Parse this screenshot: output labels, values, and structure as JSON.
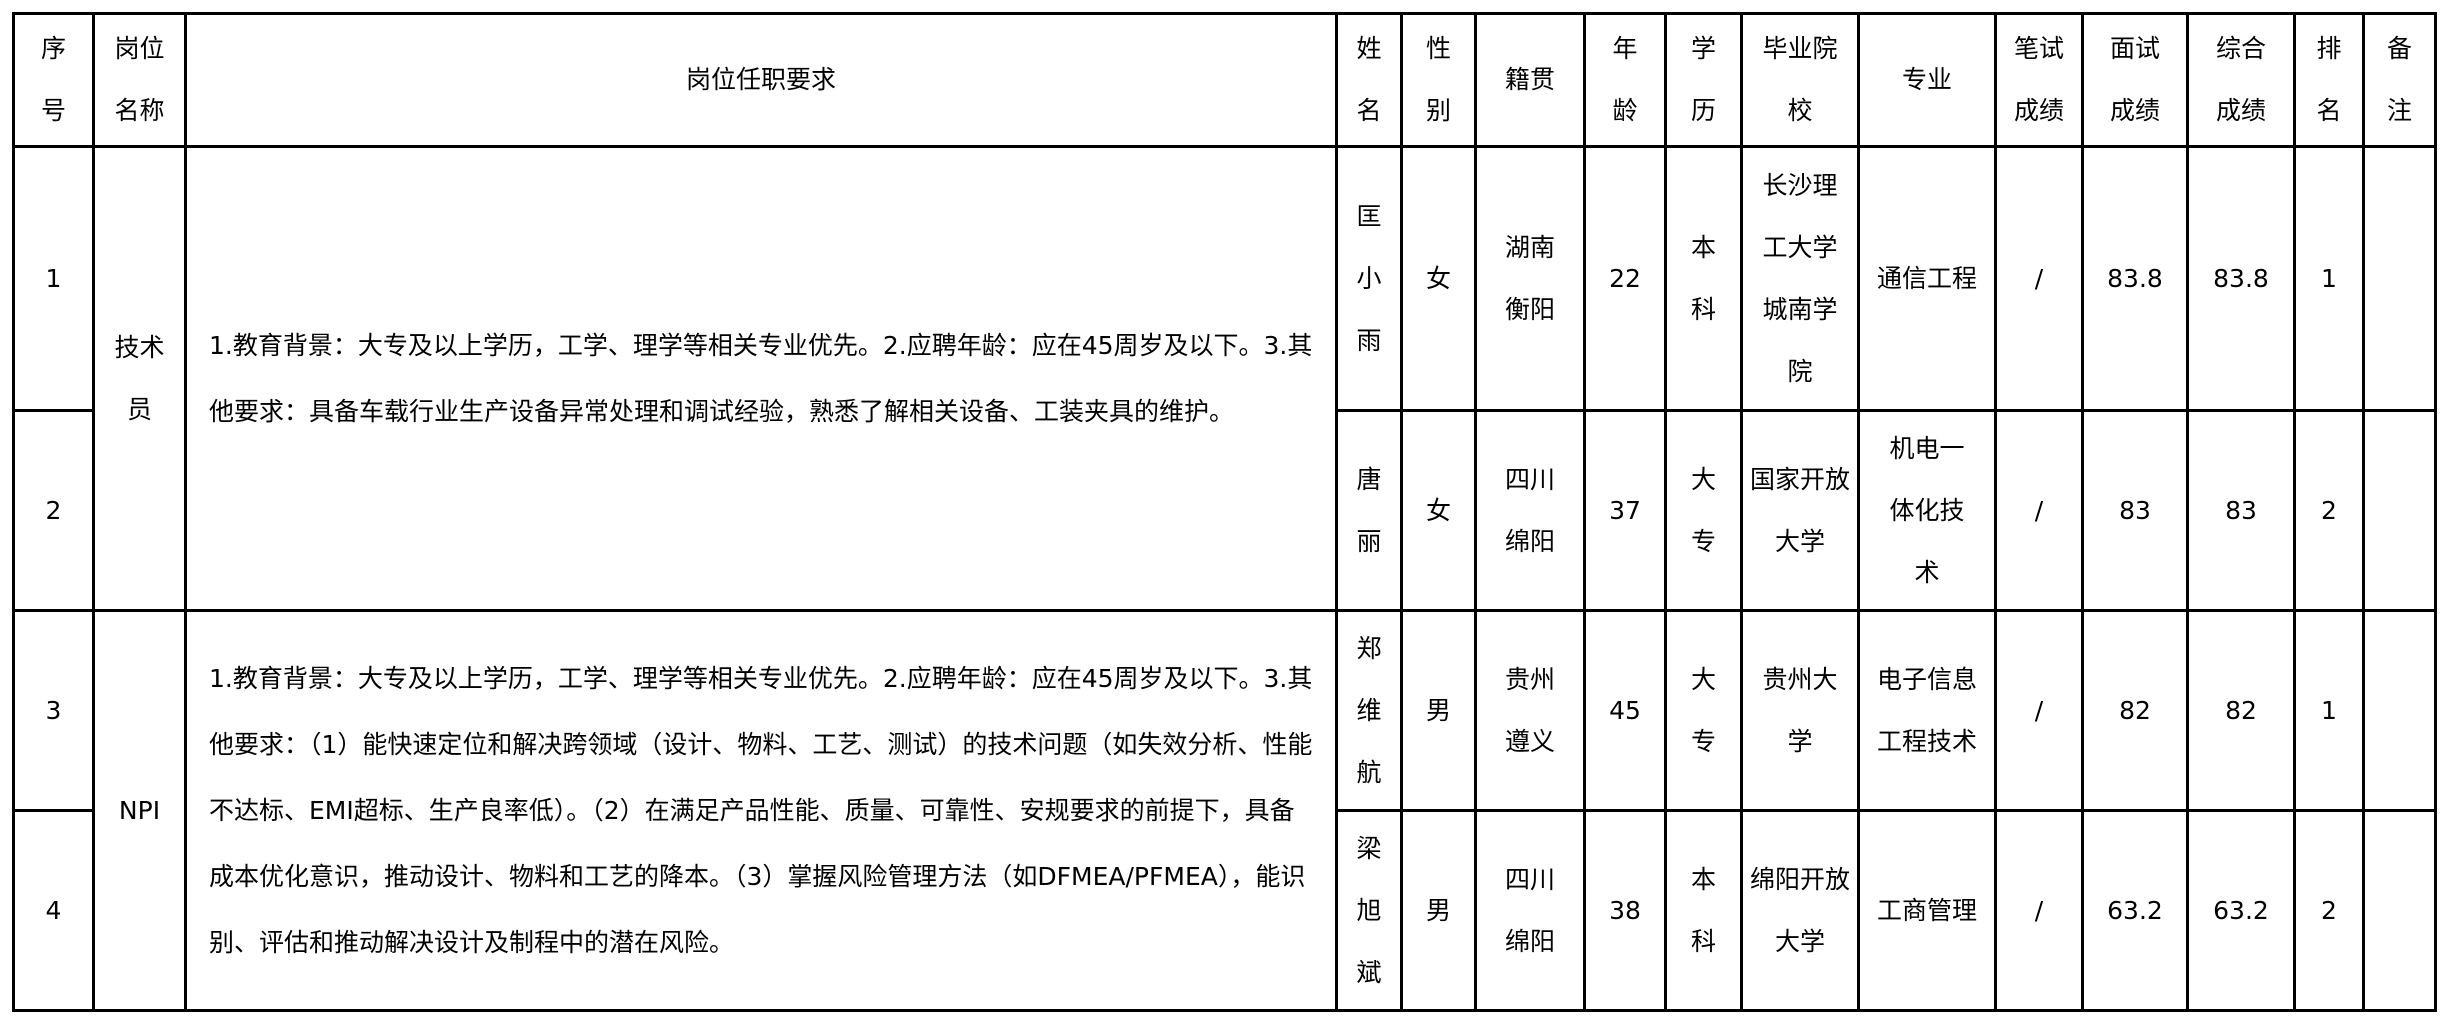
{
  "headers": [
    "序号",
    "岗位名称",
    "岗位任职要求",
    "姓名",
    "性别",
    "籍贯",
    "年龄",
    "学历",
    "毕业院校",
    "专业",
    "笔试成绩",
    "面试成绩",
    "综合成绩",
    "排名",
    "备注"
  ],
  "positions": [
    {
      "name": "技术员",
      "requirements": "1.教育背景：大专及以上学历，工学、理学等相关专业优先。2.应聘年龄：应在45周岁及以下。3.其他要求：具备车载行业生产设备异常处理和调试经验，熟悉了解相关设备、工装夹具的维护。"
    },
    {
      "name": "NPI",
      "requirements": "1.教育背景：大专及以上学历，工学、理学等相关专业优先。2.应聘年龄：应在45周岁及以下。3.其他要求：（1）能快速定位和解决跨领域（设计、物料、工艺、测试）的技术问题（如失效分析、性能不达标、EMI超标、生产良率低）。（2）在满足产品性能、质量、可靠性、安规要求的前提下，具备成本优化意识，推动设计、物料和工艺的降本。（3）掌握风险管理方法（如DFMEA/PFMEA），能识别、评估和推动解决设计及制程中的潜在风险。"
    }
  ],
  "rows": [
    {
      "no": "1",
      "name": "匡小雨",
      "gender": "女",
      "origin": "湖南衡阳",
      "age": "22",
      "edu": "本科",
      "school": "长沙理工大学城南学院",
      "major": "通信工程",
      "written": "/",
      "interview": "83.8",
      "total": "83.8",
      "rank": "1",
      "note": ""
    },
    {
      "no": "2",
      "name": "唐丽",
      "gender": "女",
      "origin": "四川绵阳",
      "age": "37",
      "edu": "大专",
      "school": "国家开放大学",
      "major": "机电一体化技术",
      "written": "/",
      "interview": "83",
      "total": "83",
      "rank": "2",
      "note": ""
    },
    {
      "no": "3",
      "name": "郑维航",
      "gender": "男",
      "origin": "贵州遵义",
      "age": "45",
      "edu": "大专",
      "school": "贵州大学",
      "major": "电子信息工程技术",
      "written": "/",
      "interview": "82",
      "total": "82",
      "rank": "1",
      "note": ""
    },
    {
      "no": "4",
      "name": "梁旭斌",
      "gender": "男",
      "origin": "四川绵阳",
      "age": "38",
      "edu": "本科",
      "school": "绵阳开放大学",
      "major": "工商管理",
      "written": "/",
      "interview": "63.2",
      "total": "63.2",
      "rank": "2",
      "note": ""
    }
  ]
}
